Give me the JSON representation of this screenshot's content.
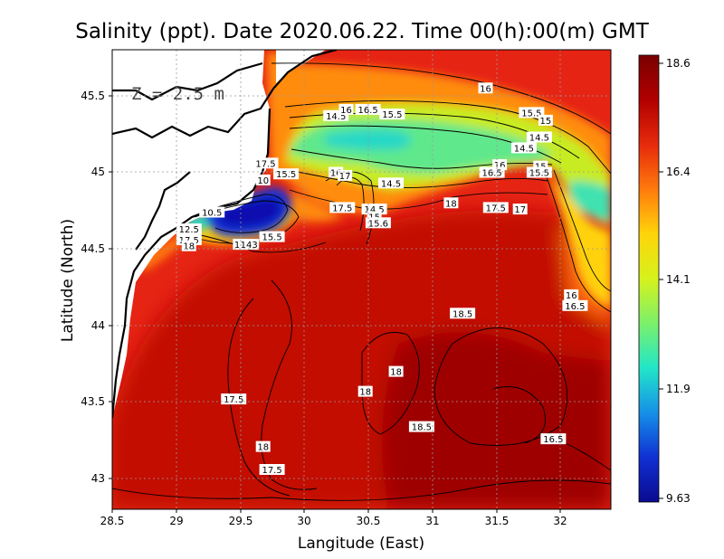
{
  "chart_data": {
    "type": "heatmap",
    "title": "Salinity (ppt). Date 2020.06.22. Time 00(h):00(m) GMT",
    "xlabel": "Langitude (East)",
    "ylabel": "Latitude (North)",
    "xlim": [
      28.5,
      32.4
    ],
    "ylim": [
      42.8,
      45.8
    ],
    "x_ticks": [
      "28.5",
      "29",
      "29.5",
      "30",
      "30.5",
      "31",
      "31.5",
      "32"
    ],
    "y_ticks": [
      "43",
      "43.5",
      "44",
      "44.5",
      "45",
      "45.5"
    ],
    "grid": true,
    "depth_label": "Z = 2.5 m",
    "colorbar": {
      "min": 9.63,
      "max": 18.6,
      "tick_labels": [
        "18.6",
        "16.4",
        "14.1",
        "11.9",
        "9.63"
      ],
      "colors": [
        "#7a0000",
        "#b10000",
        "#e62a0c",
        "#ff7a0d",
        "#ffd40a",
        "#d6f21c",
        "#7cf06b",
        "#22e6c8",
        "#1690e8",
        "#1030d2",
        "#0a0a90"
      ]
    },
    "contour_labels": [
      {
        "lon": 30.25,
        "lat": 45.37,
        "text": "14.5"
      },
      {
        "lon": 30.33,
        "lat": 45.41,
        "text": "16"
      },
      {
        "lon": 30.5,
        "lat": 45.41,
        "text": "16.5"
      },
      {
        "lon": 30.69,
        "lat": 45.38,
        "text": "15.5"
      },
      {
        "lon": 31.42,
        "lat": 45.55,
        "text": "16"
      },
      {
        "lon": 31.78,
        "lat": 45.39,
        "text": "15.5"
      },
      {
        "lon": 31.89,
        "lat": 45.34,
        "text": "15"
      },
      {
        "lon": 31.84,
        "lat": 45.23,
        "text": "14.5"
      },
      {
        "lon": 31.72,
        "lat": 45.16,
        "text": "14.5"
      },
      {
        "lon": 31.53,
        "lat": 45.05,
        "text": "16"
      },
      {
        "lon": 31.47,
        "lat": 45.0,
        "text": "16.5"
      },
      {
        "lon": 31.85,
        "lat": 45.04,
        "text": "15"
      },
      {
        "lon": 31.84,
        "lat": 45.0,
        "text": "15.5"
      },
      {
        "lon": 29.7,
        "lat": 45.06,
        "text": "17.5"
      },
      {
        "lon": 29.86,
        "lat": 44.99,
        "text": "15.5"
      },
      {
        "lon": 29.68,
        "lat": 44.95,
        "text": "10"
      },
      {
        "lon": 30.25,
        "lat": 45.0,
        "text": "16"
      },
      {
        "lon": 30.32,
        "lat": 44.98,
        "text": "17"
      },
      {
        "lon": 30.68,
        "lat": 44.93,
        "text": "14.5"
      },
      {
        "lon": 31.15,
        "lat": 44.8,
        "text": "18"
      },
      {
        "lon": 31.5,
        "lat": 44.77,
        "text": "17.5"
      },
      {
        "lon": 31.69,
        "lat": 44.76,
        "text": "17"
      },
      {
        "lon": 30.3,
        "lat": 44.77,
        "text": "17.5"
      },
      {
        "lon": 30.55,
        "lat": 44.76,
        "text": "14.5"
      },
      {
        "lon": 30.55,
        "lat": 44.71,
        "text": "15"
      },
      {
        "lon": 30.58,
        "lat": 44.67,
        "text": "15.6"
      },
      {
        "lon": 29.28,
        "lat": 44.74,
        "text": "10.5"
      },
      {
        "lon": 29.1,
        "lat": 44.63,
        "text": "12.5"
      },
      {
        "lon": 29.1,
        "lat": 44.56,
        "text": "17.5"
      },
      {
        "lon": 29.1,
        "lat": 44.52,
        "text": "18"
      },
      {
        "lon": 29.5,
        "lat": 44.53,
        "text": "11"
      },
      {
        "lon": 29.57,
        "lat": 44.53,
        "text": "143"
      },
      {
        "lon": 29.75,
        "lat": 44.58,
        "text": "15.5"
      },
      {
        "lon": 32.09,
        "lat": 44.2,
        "text": "16"
      },
      {
        "lon": 32.12,
        "lat": 44.13,
        "text": "16.5"
      },
      {
        "lon": 31.24,
        "lat": 44.08,
        "text": "18.5"
      },
      {
        "lon": 30.72,
        "lat": 43.7,
        "text": "18"
      },
      {
        "lon": 30.48,
        "lat": 43.57,
        "text": "18"
      },
      {
        "lon": 29.45,
        "lat": 43.52,
        "text": "17.5"
      },
      {
        "lon": 30.92,
        "lat": 43.34,
        "text": "18.5"
      },
      {
        "lon": 31.95,
        "lat": 43.26,
        "text": "16.5"
      },
      {
        "lon": 29.68,
        "lat": 43.21,
        "text": "18"
      },
      {
        "lon": 29.75,
        "lat": 43.06,
        "text": "17.5"
      }
    ]
  }
}
